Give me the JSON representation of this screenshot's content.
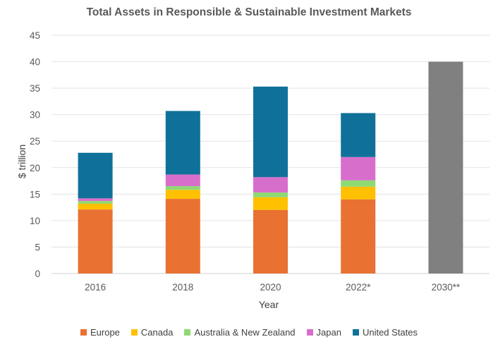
{
  "chart_data": {
    "type": "bar",
    "stacked": true,
    "title": "Total Assets in Responsible & Sustainable Investment Markets",
    "xlabel": "Year",
    "ylabel": "$ trillion",
    "ylim": [
      0,
      45
    ],
    "yticks": [
      "0",
      "5",
      "10",
      "15",
      "20",
      "25",
      "30",
      "35",
      "40",
      "45"
    ],
    "grid": true,
    "legend_position": "bottom",
    "categories": [
      "2016",
      "2018",
      "2020",
      "2022*",
      "2030**"
    ],
    "series": [
      {
        "name": "Europe",
        "color": "#E97132",
        "values": [
          12.1,
          14.1,
          12.0,
          14.0,
          null
        ]
      },
      {
        "name": "Canada",
        "color": "#FFC000",
        "values": [
          1.1,
          1.7,
          2.4,
          2.4,
          null
        ]
      },
      {
        "name": "Australia & New Zealand",
        "color": "#8ED973",
        "values": [
          0.5,
          0.7,
          0.9,
          1.2,
          null
        ]
      },
      {
        "name": "Japan",
        "color": "#D86ECC",
        "values": [
          0.5,
          2.2,
          2.9,
          4.4,
          null
        ]
      },
      {
        "name": "United States",
        "color": "#0F7199",
        "values": [
          8.6,
          12.0,
          17.1,
          8.3,
          null
        ]
      }
    ],
    "projection": {
      "category": "2030**",
      "value": 40,
      "color": "#808080"
    }
  }
}
